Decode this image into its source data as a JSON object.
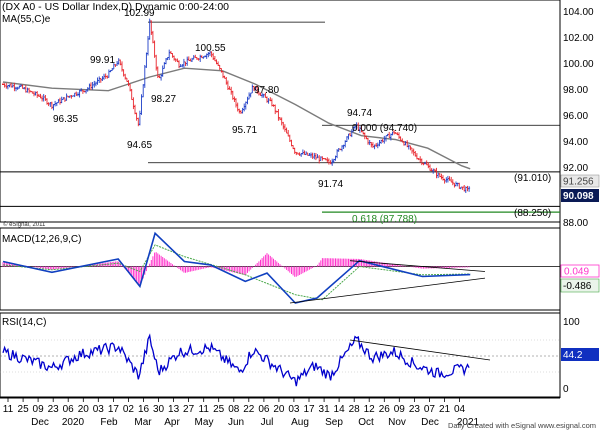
{
  "panels": {
    "price": {
      "title": "(DX A0 - US Dollar Index,D) Dynamic 0:00-24:00",
      "indicator": "MA(55,C)e",
      "source_note": "© eSignal, 2011",
      "y_ticks": [
        "104.00",
        "102.00",
        "100.00",
        "98.00",
        "96.00",
        "94.00",
        "92.00",
        "90.00",
        "88.00"
      ],
      "last_price": "90.098",
      "ma_value": "91.256",
      "peak_labels": [
        "102.99",
        "99.91",
        "100.55",
        "98.27",
        "97.80",
        "96.35",
        "94.65",
        "95.71",
        "94.74",
        "91.74"
      ],
      "fib_0": "0.000 (94.740)",
      "fib_618": "0.618 (87.788)",
      "proj_1": "(91.010)",
      "proj_2": "(88.250)"
    },
    "macd": {
      "title": "MACD(12,26,9,C)",
      "value_1": "0.049",
      "value_2": "-0.486",
      "y_ticks": [
        "0.000"
      ]
    },
    "rsi": {
      "title": "RSI(14,C)",
      "value": "44.2",
      "y_ticks": [
        "100",
        "50",
        "0"
      ]
    }
  },
  "x_axis": {
    "day_labels": [
      "11",
      "25",
      "09",
      "23",
      "06",
      "20",
      "03",
      "17",
      "02",
      "16",
      "30",
      "13",
      "27",
      "11",
      "25",
      "08",
      "22",
      "06",
      "20",
      "03",
      "17",
      "31",
      "14",
      "28",
      "12",
      "26",
      "09",
      "23",
      "07",
      "21",
      "04"
    ],
    "month_labels": [
      "Dec",
      "2020",
      "Feb",
      "Mar",
      "Apr",
      "May",
      "Jun",
      "Jul",
      "Aug",
      "Sep",
      "Oct",
      "Nov",
      "Dec",
      "2021"
    ]
  },
  "footer": "Daily      Created with eSignal      www.esignal.com",
  "colors": {
    "up": "#1f3fc8",
    "down": "#e8242b",
    "ma": "#7b7b7b",
    "macd_line": "#1040c0",
    "macd_signal": "#4aa84a",
    "macd_hist": "#ff33cc",
    "rsi_line": "#0000cc",
    "fib_green": "#228822"
  },
  "chart_data": {
    "type": "line",
    "x_range": [
      "2019-11-05",
      "2021-01-06"
    ],
    "price_ylim": [
      87.0,
      104.6
    ],
    "series": [
      {
        "name": "US Dollar Index (DX A0)",
        "points": [
          [
            "2019-11-05",
            98.0
          ],
          [
            "2019-11-20",
            97.8
          ],
          [
            "2019-12-10",
            97.0
          ],
          [
            "2019-12-20",
            96.35
          ],
          [
            "2020-01-08",
            97.2
          ],
          [
            "2020-01-20",
            97.6
          ],
          [
            "2020-02-10",
            98.8
          ],
          [
            "2020-02-19",
            99.91
          ],
          [
            "2020-02-28",
            98.1
          ],
          [
            "2020-03-09",
            94.65
          ],
          [
            "2020-03-12",
            97.3
          ],
          [
            "2020-03-19",
            102.99
          ],
          [
            "2020-03-27",
            98.27
          ],
          [
            "2020-04-06",
            100.6
          ],
          [
            "2020-04-15",
            99.6
          ],
          [
            "2020-05-14",
            100.55
          ],
          [
            "2020-05-25",
            98.8
          ],
          [
            "2020-06-10",
            95.71
          ],
          [
            "2020-06-22",
            97.8
          ],
          [
            "2020-07-10",
            96.4
          ],
          [
            "2020-07-31",
            92.6
          ],
          [
            "2020-08-18",
            92.2
          ],
          [
            "2020-09-01",
            91.74
          ],
          [
            "2020-09-25",
            94.74
          ],
          [
            "2020-10-10",
            93.0
          ],
          [
            "2020-10-30",
            94.2
          ],
          [
            "2020-11-20",
            92.2
          ],
          [
            "2020-12-10",
            90.7
          ],
          [
            "2021-01-06",
            89.5
          ],
          [
            "2021-01-08",
            90.098
          ]
        ]
      },
      {
        "name": "MA(55,C)e",
        "points": [
          [
            "2019-11-05",
            98.2
          ],
          [
            "2019-12-20",
            97.7
          ],
          [
            "2020-02-10",
            97.5
          ],
          [
            "2020-03-19",
            98.6
          ],
          [
            "2020-04-20",
            99.3
          ],
          [
            "2020-05-25",
            99.1
          ],
          [
            "2020-06-25",
            98.0
          ],
          [
            "2020-07-31",
            96.4
          ],
          [
            "2020-08-31",
            94.9
          ],
          [
            "2020-09-30",
            93.9
          ],
          [
            "2020-10-31",
            93.6
          ],
          [
            "2020-11-30",
            92.9
          ],
          [
            "2020-12-31",
            91.5
          ],
          [
            "2021-01-08",
            91.256
          ]
        ]
      }
    ],
    "annotations": [
      {
        "label": "0.000 (94.740)",
        "y": 94.74
      },
      {
        "label": "0.618 (87.788)",
        "y": 87.788
      },
      {
        "label": "(91.010)",
        "y": 91.01
      },
      {
        "label": "(88.250)",
        "y": 88.25
      }
    ],
    "macd": {
      "ylim": [
        -2.5,
        2.2
      ],
      "macd_points": [
        [
          "2019-11-05",
          0.3
        ],
        [
          "2019-12-20",
          -0.35
        ],
        [
          "2020-02-19",
          0.45
        ],
        [
          "2020-03-10",
          -1.2
        ],
        [
          "2020-03-24",
          2.0
        ],
        [
          "2020-04-20",
          0.3
        ],
        [
          "2020-05-14",
          0.1
        ],
        [
          "2020-06-15",
          -0.9
        ],
        [
          "2020-07-05",
          -0.4
        ],
        [
          "2020-07-31",
          -2.2
        ],
        [
          "2020-08-20",
          -1.9
        ],
        [
          "2020-09-28",
          0.35
        ],
        [
          "2020-11-25",
          -0.6
        ],
        [
          "2021-01-08",
          -0.486
        ]
      ],
      "signal_points": [
        [
          "2019-11-05",
          0.1
        ],
        [
          "2019-12-20",
          -0.2
        ],
        [
          "2020-02-19",
          0.2
        ],
        [
          "2020-03-10",
          -0.3
        ],
        [
          "2020-03-24",
          1.3
        ],
        [
          "2020-04-20",
          0.6
        ],
        [
          "2020-06-15",
          -0.5
        ],
        [
          "2020-07-31",
          -1.7
        ],
        [
          "2020-08-25",
          -2.0
        ],
        [
          "2020-09-28",
          0.0
        ],
        [
          "2020-11-25",
          -0.5
        ],
        [
          "2021-01-08",
          -0.45
        ]
      ]
    },
    "rsi": {
      "ylim": [
        0,
        100
      ],
      "points": [
        [
          "2019-11-05",
          55
        ],
        [
          "2019-12-05",
          42
        ],
        [
          "2019-12-20",
          35
        ],
        [
          "2020-01-15",
          52
        ],
        [
          "2020-02-19",
          62
        ],
        [
          "2020-03-09",
          25
        ],
        [
          "2020-03-19",
          72
        ],
        [
          "2020-03-27",
          30
        ],
        [
          "2020-04-15",
          55
        ],
        [
          "2020-05-14",
          60
        ],
        [
          "2020-06-10",
          30
        ],
        [
          "2020-06-22",
          58
        ],
        [
          "2020-07-31",
          18
        ],
        [
          "2020-08-18",
          38
        ],
        [
          "2020-09-01",
          25
        ],
        [
          "2020-09-25",
          70
        ],
        [
          "2020-10-10",
          48
        ],
        [
          "2020-10-30",
          55
        ],
        [
          "2020-11-20",
          38
        ],
        [
          "2020-12-10",
          28
        ],
        [
          "2021-01-06",
          35
        ],
        [
          "2021-01-08",
          44.2
        ]
      ]
    }
  }
}
